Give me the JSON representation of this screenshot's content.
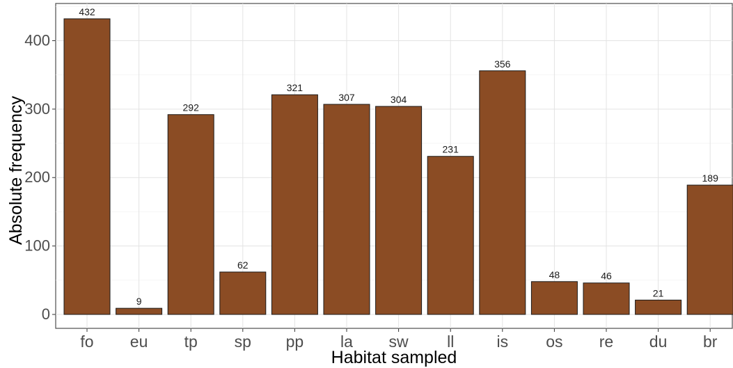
{
  "chart_data": {
    "type": "bar",
    "xlabel": "Habitat sampled",
    "ylabel": "Absolute frequency",
    "categories": [
      "fo",
      "eu",
      "tp",
      "sp",
      "pp",
      "la",
      "sw",
      "ll",
      "is",
      "os",
      "re",
      "du",
      "br"
    ],
    "values": [
      432,
      9,
      292,
      62,
      321,
      307,
      304,
      231,
      356,
      48,
      46,
      21,
      189
    ],
    "ylim": [
      0,
      455
    ],
    "yticks": [
      0,
      100,
      200,
      300,
      400
    ],
    "grid": true,
    "legend": "none",
    "bar_color": "#8b4c24",
    "bar_edge_color": "#1a1a1a"
  }
}
